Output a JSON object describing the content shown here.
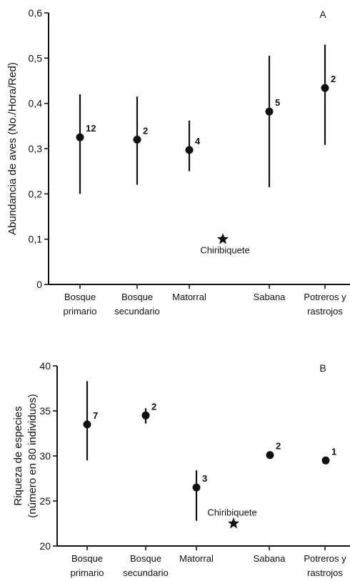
{
  "chart_data": [
    {
      "type": "scatter",
      "panel_label": "A",
      "ylabel": "Abundancia de aves (No./Hora/Red)",
      "ylabel_lines": [
        "Abundancia de aves (No./Hora/Red)"
      ],
      "ylim": [
        0,
        0.6
      ],
      "yticks": [
        "0",
        "0,1",
        "0,2",
        "0,3",
        "0,4",
        "0,5",
        "0,6"
      ],
      "ytick_values": [
        0,
        0.1,
        0.2,
        0.3,
        0.4,
        0.5,
        0.6
      ],
      "categories": [
        {
          "line1": "Bosque",
          "line2": "primario"
        },
        {
          "line1": "Bosque",
          "line2": "secundario"
        },
        {
          "line1": "Matorral",
          "line2": ""
        },
        {
          "line1": "Sabana",
          "line2": ""
        },
        {
          "line1": "Potreros y",
          "line2": "rastrojos"
        }
      ],
      "points": [
        {
          "category_index": 0,
          "mean": 0.325,
          "low": 0.2,
          "high": 0.42,
          "n": "12"
        },
        {
          "category_index": 1,
          "mean": 0.32,
          "low": 0.22,
          "high": 0.415,
          "n": "2"
        },
        {
          "category_index": 2,
          "mean": 0.297,
          "low": 0.25,
          "high": 0.362,
          "n": "4"
        },
        {
          "category_index": 3,
          "mean": 0.382,
          "low": 0.215,
          "high": 0.505,
          "n": "5"
        },
        {
          "category_index": 4,
          "mean": 0.434,
          "low": 0.308,
          "high": 0.53,
          "n": "2"
        }
      ],
      "reference": {
        "label": "Chiribiquete",
        "value": 0.1
      }
    },
    {
      "type": "scatter",
      "panel_label": "B",
      "ylabel": "Riqueza de especies (número en 80 individuos)",
      "ylabel_lines": [
        "Riqueza de especies",
        "(número en 80 individuos)"
      ],
      "ylim": [
        20,
        40
      ],
      "yticks": [
        "20",
        "25",
        "30",
        "35",
        "40"
      ],
      "ytick_values": [
        20,
        25,
        30,
        35,
        40
      ],
      "categories": [
        {
          "line1": "Bosque",
          "line2": "primario"
        },
        {
          "line1": "Bosque",
          "line2": "secundario"
        },
        {
          "line1": "Matorral",
          "line2": ""
        },
        {
          "line1": "Sabana",
          "line2": ""
        },
        {
          "line1": "Potreros y",
          "line2": "rastrojos"
        }
      ],
      "points": [
        {
          "category_index": 0,
          "mean": 33.5,
          "low": 29.5,
          "high": 38.3,
          "n": "7"
        },
        {
          "category_index": 1,
          "mean": 34.5,
          "low": 33.6,
          "high": 35.3,
          "n": "2"
        },
        {
          "category_index": 2,
          "mean": 26.5,
          "low": 22.8,
          "high": 28.4,
          "n": "3"
        },
        {
          "category_index": 3,
          "mean": 30.1,
          "low": 30.1,
          "high": 30.1,
          "n": "2"
        },
        {
          "category_index": 4,
          "mean": 29.5,
          "low": 29.5,
          "high": 29.5,
          "n": "1"
        }
      ],
      "reference": {
        "label": "Chiribiquete",
        "value": 22.5
      }
    }
  ]
}
